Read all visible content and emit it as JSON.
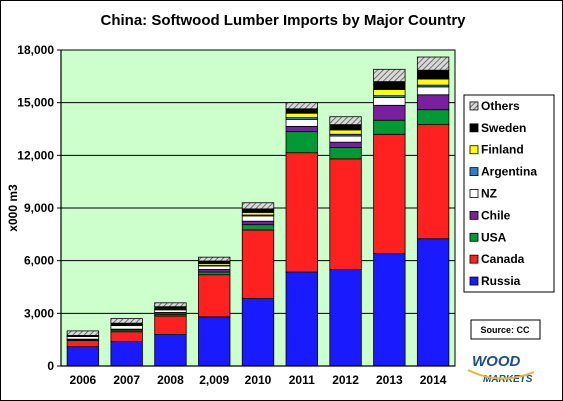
{
  "chart_data": {
    "type": "bar",
    "stacked": true,
    "title": "China: Softwood Lumber Imports by Major Country",
    "ylabel": "x000 m3",
    "xlabel": "",
    "ylim": [
      0,
      18000
    ],
    "yticks": [
      0,
      3000,
      6000,
      9000,
      12000,
      15000,
      18000
    ],
    "ytick_labels": [
      "0",
      "3,000",
      "6,000",
      "9,000",
      "12,000",
      "15,000",
      "18,000"
    ],
    "categories": [
      "2006",
      "2007",
      "2008",
      "2,009",
      "2010",
      "2011",
      "2012",
      "2013",
      "2014"
    ],
    "series": [
      {
        "name": "Russia",
        "color": "#1a1aff",
        "values": [
          1100,
          1400,
          1800,
          2800,
          3850,
          5350,
          5500,
          6400,
          7250
        ]
      },
      {
        "name": "Canada",
        "color": "#ff2020",
        "values": [
          350,
          550,
          1050,
          2400,
          3900,
          6800,
          6300,
          6800,
          6500
        ]
      },
      {
        "name": "USA",
        "color": "#009933",
        "values": [
          50,
          100,
          100,
          150,
          300,
          1200,
          650,
          800,
          850
        ]
      },
      {
        "name": "Chile",
        "color": "#7a1fa0",
        "values": [
          30,
          50,
          100,
          150,
          200,
          300,
          300,
          850,
          850
        ]
      },
      {
        "name": "NZ",
        "color": "#ffffff",
        "values": [
          150,
          200,
          150,
          200,
          300,
          400,
          350,
          450,
          450
        ]
      },
      {
        "name": "Argentina",
        "color": "#2a7fd4",
        "values": [
          10,
          20,
          20,
          30,
          50,
          100,
          100,
          100,
          100
        ]
      },
      {
        "name": "Finland",
        "color": "#ffff00",
        "values": [
          20,
          50,
          60,
          100,
          150,
          250,
          250,
          350,
          350
        ]
      },
      {
        "name": "Sweden",
        "color": "#000000",
        "values": [
          30,
          70,
          100,
          150,
          200,
          250,
          300,
          450,
          500
        ]
      },
      {
        "name": "Others",
        "color": "#bfbfbf",
        "pattern": "hatch",
        "values": [
          260,
          260,
          220,
          220,
          350,
          350,
          450,
          700,
          750
        ]
      }
    ],
    "legend": {
      "placement": "right",
      "order": [
        "Others",
        "Sweden",
        "Finland",
        "Argentina",
        "NZ",
        "Chile",
        "USA",
        "Canada",
        "Russia"
      ]
    },
    "plot_background": "#ccffcc",
    "grid": true
  },
  "source_label": "Source: CC",
  "logo": {
    "line1": "WOOD",
    "line2": "MARKETS"
  }
}
